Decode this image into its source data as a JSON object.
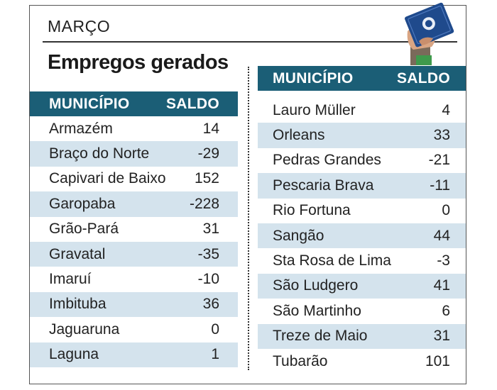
{
  "month": "MARÇO",
  "headline": "Empregos gerados",
  "columns": {
    "municipio": "MUNICÍPIO",
    "saldo": "SALDO"
  },
  "left_rows": [
    {
      "municipio": "Armazém",
      "saldo": "14"
    },
    {
      "municipio": "Braço do Norte",
      "saldo": "-29"
    },
    {
      "municipio": "Capivari de Baixo",
      "saldo": "152"
    },
    {
      "municipio": "Garopaba",
      "saldo": "-228"
    },
    {
      "municipio": "Grão-Pará",
      "saldo": "31"
    },
    {
      "municipio": "Gravatal",
      "saldo": "-35"
    },
    {
      "municipio": "Imaruí",
      "saldo": "-10"
    },
    {
      "municipio": "Imbituba",
      "saldo": "36"
    },
    {
      "municipio": "Jaguaruna",
      "saldo": "0"
    },
    {
      "municipio": "Laguna",
      "saldo": "1"
    }
  ],
  "right_rows": [
    {
      "municipio": "Lauro Müller",
      "saldo": "4"
    },
    {
      "municipio": "Orleans",
      "saldo": "33"
    },
    {
      "municipio": "Pedras Grandes",
      "saldo": "-21"
    },
    {
      "municipio": "Pescaria Brava",
      "saldo": "-11"
    },
    {
      "municipio": "Rio Fortuna",
      "saldo": "0"
    },
    {
      "municipio": "Sangão",
      "saldo": "44"
    },
    {
      "municipio": "Sta Rosa de Lima",
      "saldo": "-3"
    },
    {
      "municipio": "São Ludgero",
      "saldo": "41"
    },
    {
      "municipio": "São Martinho",
      "saldo": "6"
    },
    {
      "municipio": "Treze de Maio",
      "saldo": "31"
    },
    {
      "municipio": "Tubarão",
      "saldo": "101"
    }
  ],
  "colors": {
    "header": "#1b5e76",
    "stripe": "#d4e3ed",
    "card": "#1f4a8c"
  },
  "icon": "work-card-in-hand-icon"
}
